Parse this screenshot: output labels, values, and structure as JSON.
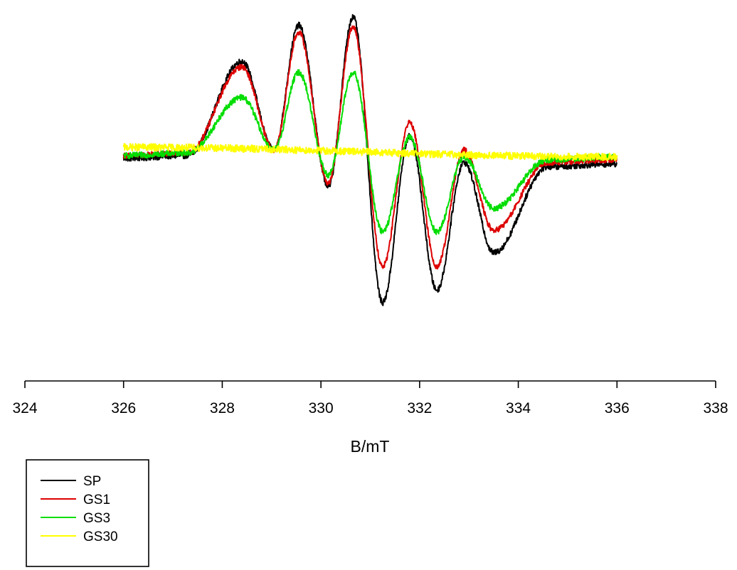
{
  "chart_data": {
    "type": "line",
    "title": "",
    "xlabel": "B/mT",
    "ylabel": "",
    "xlim": [
      324,
      338
    ],
    "ylim": [
      -1.0,
      1.0
    ],
    "x_ticks": [
      "324",
      "326",
      "328",
      "330",
      "332",
      "334",
      "336",
      "338"
    ],
    "y_axis_visible": false,
    "grid": false,
    "legend_position": "bottom-left",
    "x_range": [
      326,
      336
    ],
    "series": [
      {
        "name": "SP",
        "color": "#000000",
        "baseline_start": -0.04,
        "baseline_end": -0.08,
        "points": [
          [
            328.4,
            0.66
          ],
          [
            329.05,
            0.02
          ],
          [
            329.55,
            0.92
          ],
          [
            330.15,
            -0.24
          ],
          [
            330.65,
            0.98
          ],
          [
            331.25,
            -1.08
          ],
          [
            331.8,
            0.12
          ],
          [
            332.35,
            -0.99
          ],
          [
            332.9,
            -0.07
          ],
          [
            333.5,
            -0.72
          ]
        ]
      },
      {
        "name": "GS1",
        "color": "#dd0000",
        "baseline_start": -0.02,
        "baseline_end": -0.05,
        "points": [
          [
            328.4,
            0.62
          ],
          [
            329.05,
            0.02
          ],
          [
            329.55,
            0.87
          ],
          [
            330.15,
            -0.22
          ],
          [
            330.65,
            0.91
          ],
          [
            331.25,
            -0.82
          ],
          [
            331.8,
            0.22
          ],
          [
            332.35,
            -0.82
          ],
          [
            332.9,
            0.02
          ],
          [
            333.5,
            -0.56
          ]
        ]
      },
      {
        "name": "GS3",
        "color": "#00dd00",
        "baseline_start": -0.02,
        "baseline_end": -0.03,
        "points": [
          [
            328.4,
            0.4
          ],
          [
            329.05,
            0.02
          ],
          [
            329.55,
            0.58
          ],
          [
            330.15,
            -0.16
          ],
          [
            330.65,
            0.58
          ],
          [
            331.25,
            -0.57
          ],
          [
            331.8,
            0.11
          ],
          [
            332.35,
            -0.57
          ],
          [
            332.9,
            -0.03
          ],
          [
            333.5,
            -0.4
          ]
        ]
      },
      {
        "name": "GS30",
        "color": "#ffff00",
        "baseline_start": 0.04,
        "baseline_end": -0.03,
        "points": []
      }
    ]
  }
}
